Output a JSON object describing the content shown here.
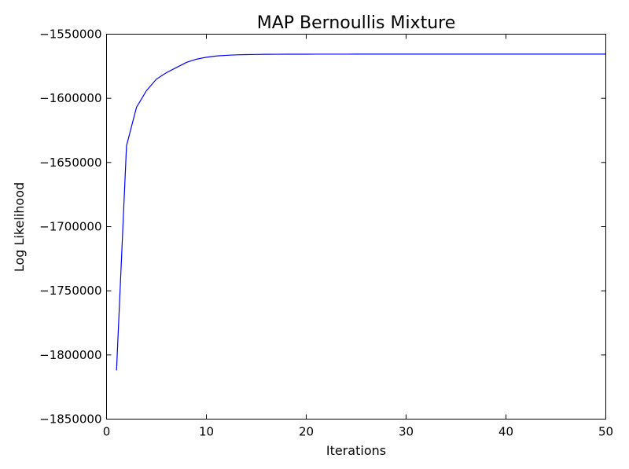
{
  "chart_data": {
    "type": "line",
    "title": "MAP Bernoullis Mixture",
    "xlabel": "Iterations",
    "ylabel": "Log Likelihood",
    "xlim": [
      0,
      50
    ],
    "ylim": [
      -1850000,
      -1550000
    ],
    "xticks": [
      0,
      10,
      20,
      30,
      40,
      50
    ],
    "yticks": [
      -1550000,
      -1600000,
      -1650000,
      -1700000,
      -1750000,
      -1800000,
      -1850000
    ],
    "grid": false,
    "series": [
      {
        "color": "#0000ff",
        "x": [
          1,
          2,
          3,
          4,
          5,
          6,
          7,
          8,
          9,
          10,
          11,
          12,
          13,
          14,
          15,
          16,
          17,
          18,
          19,
          20,
          21,
          22,
          23,
          24,
          25,
          26,
          27,
          28,
          29,
          30,
          31,
          32,
          33,
          34,
          35,
          36,
          37,
          38,
          39,
          40,
          41,
          42,
          43,
          44,
          45,
          46,
          47,
          48,
          49,
          50
        ],
        "y": [
          -1812000,
          -1637000,
          -1607000,
          -1594000,
          -1585000,
          -1580000,
          -1576000,
          -1572000,
          -1569500,
          -1568000,
          -1567000,
          -1566500,
          -1566100,
          -1565900,
          -1565800,
          -1565700,
          -1565650,
          -1565600,
          -1565600,
          -1565600,
          -1565580,
          -1565580,
          -1565570,
          -1565570,
          -1565560,
          -1565560,
          -1565550,
          -1565550,
          -1565550,
          -1565550,
          -1565540,
          -1565540,
          -1565540,
          -1565540,
          -1565530,
          -1565530,
          -1565530,
          -1565530,
          -1565530,
          -1565530,
          -1565520,
          -1565520,
          -1565520,
          -1565520,
          -1565520,
          -1565520,
          -1565520,
          -1565520,
          -1565520,
          -1565520
        ]
      }
    ]
  }
}
